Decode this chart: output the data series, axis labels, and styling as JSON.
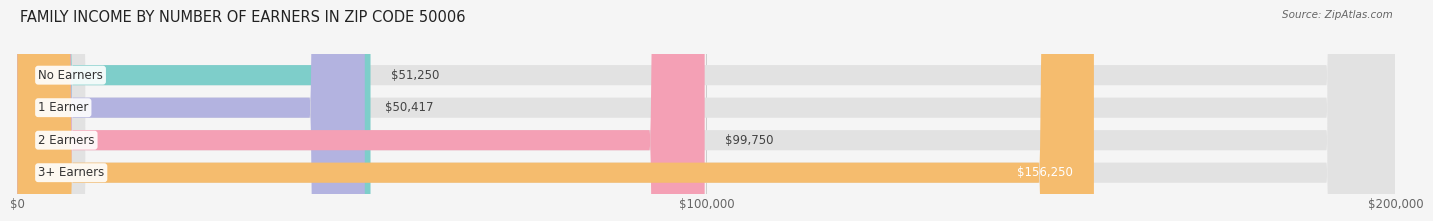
{
  "title": "FAMILY INCOME BY NUMBER OF EARNERS IN ZIP CODE 50006",
  "source": "Source: ZipAtlas.com",
  "categories": [
    "No Earners",
    "1 Earner",
    "2 Earners",
    "3+ Earners"
  ],
  "values": [
    51250,
    50417,
    99750,
    156250
  ],
  "bar_colors": [
    "#7ececa",
    "#b3b3e0",
    "#f4a0b5",
    "#f5bc6e"
  ],
  "bar_labels": [
    "$51,250",
    "$50,417",
    "$99,750",
    "$156,250"
  ],
  "xlim": [
    0,
    200000
  ],
  "xticks": [
    0,
    100000,
    200000
  ],
  "xtick_labels": [
    "$0",
    "$100,000",
    "$200,000"
  ],
  "background_color": "#f5f5f5",
  "bar_bg_color": "#e2e2e2",
  "title_fontsize": 10.5,
  "label_fontsize": 8.5,
  "value_fontsize": 8.5,
  "bar_height": 0.62,
  "fig_width": 14.06,
  "fig_height": 2.33
}
